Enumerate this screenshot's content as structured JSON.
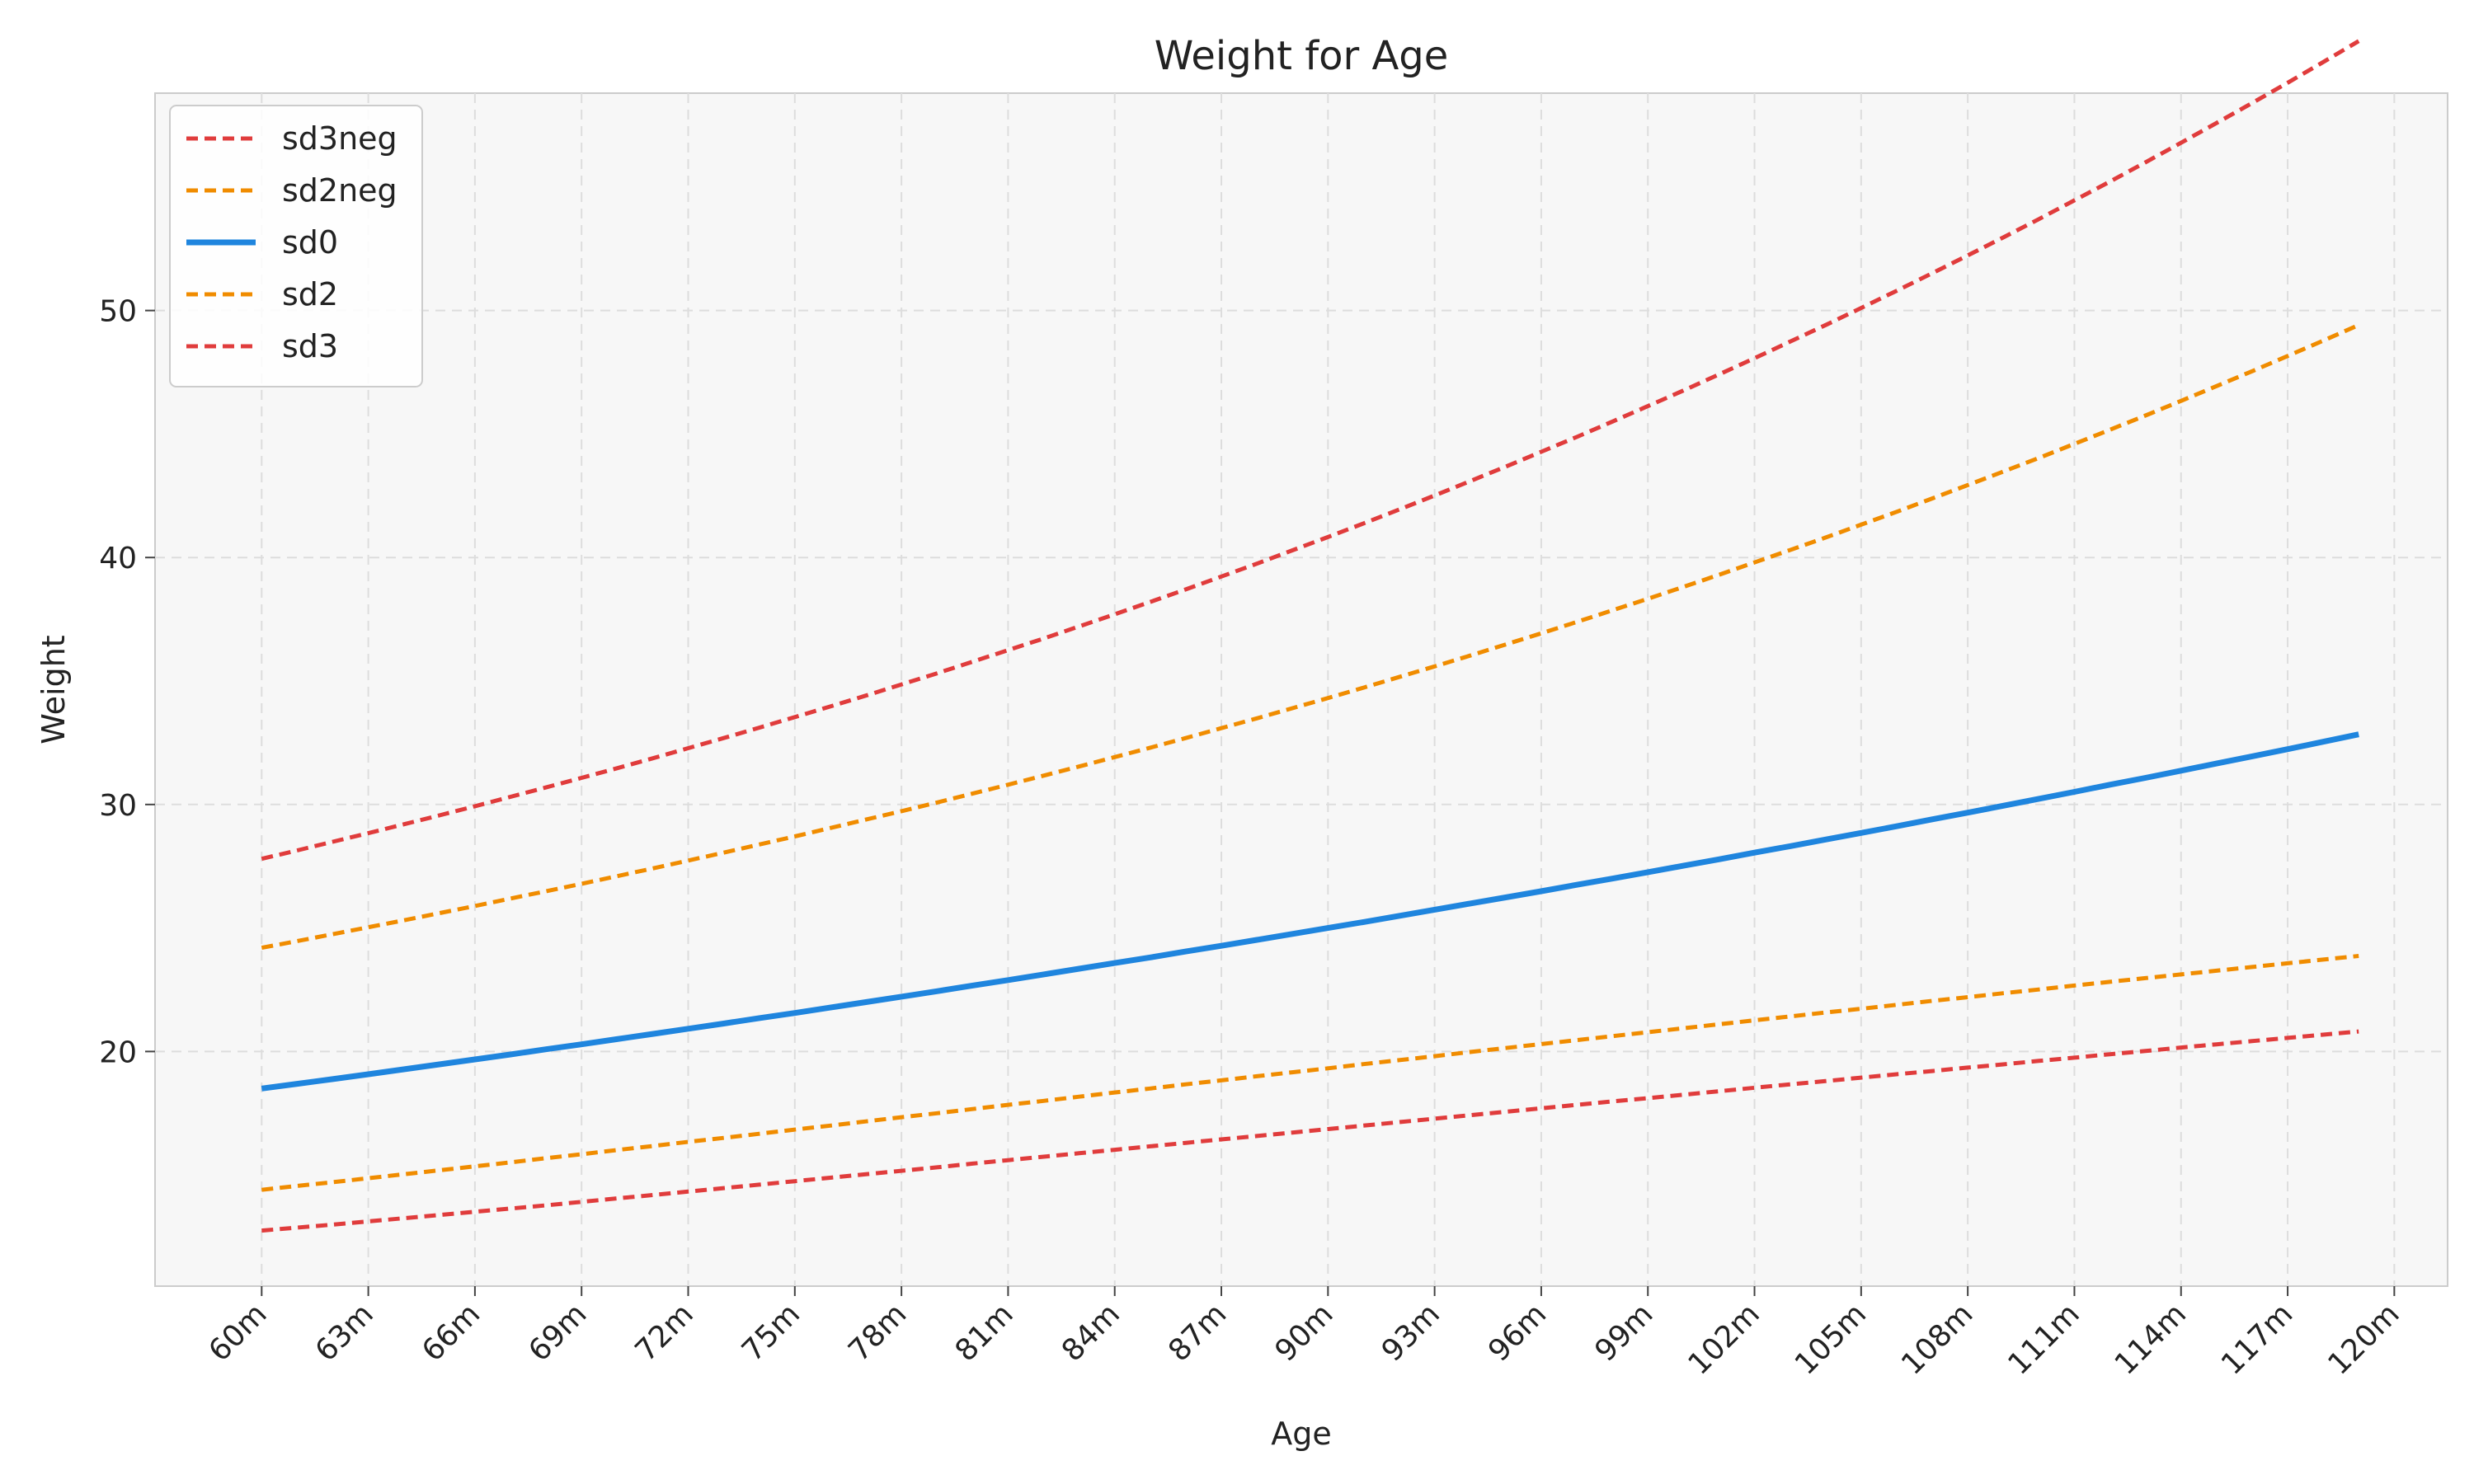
{
  "chart_data": {
    "type": "line",
    "title": "Weight for Age",
    "xlabel": "Age",
    "ylabel": "Weight",
    "categories": [
      "60m",
      "63m",
      "66m",
      "69m",
      "72m",
      "75m",
      "78m",
      "81m",
      "84m",
      "87m",
      "90m",
      "93m",
      "96m",
      "99m",
      "102m",
      "105m",
      "108m",
      "111m",
      "114m",
      "117m",
      "120m"
    ],
    "x": [
      60,
      61,
      62,
      63,
      64,
      65,
      66,
      67,
      68,
      69,
      70,
      71,
      72,
      73,
      74,
      75,
      76,
      77,
      78,
      79,
      80,
      81,
      82,
      83,
      84,
      85,
      86,
      87,
      88,
      89,
      90,
      91,
      92,
      93,
      94,
      95,
      96,
      97,
      98,
      99,
      100,
      101,
      102,
      103,
      104,
      105,
      106,
      107,
      108,
      109,
      110,
      111,
      112,
      113,
      114,
      115,
      116,
      117,
      118,
      119
    ],
    "xlim": [
      57,
      121.5
    ],
    "ylim": [
      10.5,
      58.8
    ],
    "yticks": [
      20,
      30,
      40,
      50
    ],
    "grid": true,
    "legend_position": "upper-left",
    "series": [
      {
        "name": "sd3neg",
        "color": "#e03c3c",
        "style": "dashed",
        "values": [
          12.75,
          12.87,
          12.99,
          13.12,
          13.25,
          13.38,
          13.51,
          13.64,
          13.77,
          13.91,
          14.05,
          14.19,
          14.33,
          14.47,
          14.61,
          14.75,
          14.89,
          15.03,
          15.17,
          15.31,
          15.46,
          15.6,
          15.74,
          15.88,
          16.02,
          16.16,
          16.3,
          16.44,
          16.58,
          16.72,
          16.86,
          17.0,
          17.14,
          17.28,
          17.42,
          17.56,
          17.7,
          17.84,
          17.98,
          18.11,
          18.25,
          18.39,
          18.53,
          18.67,
          18.8,
          18.94,
          19.08,
          19.21,
          19.35,
          19.48,
          19.62,
          19.75,
          19.89,
          20.02,
          20.16,
          20.29,
          20.42,
          20.55,
          20.68,
          20.81
        ]
      },
      {
        "name": "sd2neg",
        "color": "#f08c00",
        "style": "dashed",
        "values": [
          14.4,
          14.56,
          14.71,
          14.87,
          15.03,
          15.19,
          15.35,
          15.51,
          15.68,
          15.84,
          16.01,
          16.17,
          16.34,
          16.5,
          16.67,
          16.84,
          17.0,
          17.17,
          17.34,
          17.5,
          17.67,
          17.84,
          18.0,
          18.17,
          18.34,
          18.5,
          18.67,
          18.83,
          19.0,
          19.16,
          19.32,
          19.49,
          19.65,
          19.81,
          19.98,
          20.14,
          20.3,
          20.46,
          20.62,
          20.78,
          20.94,
          21.1,
          21.26,
          21.42,
          21.58,
          21.73,
          21.89,
          22.05,
          22.2,
          22.36,
          22.51,
          22.67,
          22.82,
          22.97,
          23.12,
          23.27,
          23.42,
          23.57,
          23.72,
          23.87
        ]
      },
      {
        "name": "sd0",
        "color": "#1f85de",
        "style": "solid",
        "values": [
          18.5,
          18.69,
          18.88,
          19.08,
          19.28,
          19.48,
          19.68,
          19.88,
          20.09,
          20.29,
          20.5,
          20.71,
          20.92,
          21.13,
          21.35,
          21.56,
          21.78,
          22.0,
          22.22,
          22.44,
          22.67,
          22.89,
          23.12,
          23.35,
          23.58,
          23.81,
          24.05,
          24.28,
          24.52,
          24.76,
          25.0,
          25.24,
          25.49,
          25.74,
          25.99,
          26.24,
          26.49,
          26.75,
          27.0,
          27.26,
          27.52,
          27.78,
          28.05,
          28.31,
          28.58,
          28.85,
          29.12,
          29.4,
          29.67,
          29.95,
          30.23,
          30.51,
          30.8,
          31.08,
          31.37,
          31.66,
          31.95,
          32.24,
          32.54,
          32.84
        ]
      },
      {
        "name": "sd2",
        "color": "#f08c00",
        "style": "dashed",
        "values": [
          24.2,
          24.47,
          24.75,
          25.03,
          25.31,
          25.6,
          25.89,
          26.19,
          26.49,
          26.79,
          27.1,
          27.41,
          27.73,
          28.05,
          28.38,
          28.71,
          29.05,
          29.39,
          29.73,
          30.08,
          30.44,
          30.8,
          31.17,
          31.54,
          31.92,
          32.3,
          32.69,
          33.09,
          33.49,
          33.9,
          34.31,
          34.73,
          35.16,
          35.59,
          36.03,
          36.48,
          36.93,
          37.39,
          37.86,
          38.33,
          38.81,
          39.3,
          39.8,
          40.3,
          40.81,
          41.33,
          41.85,
          42.39,
          42.93,
          43.48,
          44.03,
          44.6,
          45.17,
          45.75,
          46.34,
          46.94,
          47.54,
          48.16,
          48.78,
          49.41
        ]
      },
      {
        "name": "sd3",
        "color": "#e03c3c",
        "style": "dashed",
        "values": [
          27.8,
          28.14,
          28.49,
          28.84,
          29.2,
          29.56,
          29.93,
          30.31,
          30.69,
          31.08,
          31.47,
          31.87,
          32.28,
          32.69,
          33.11,
          33.54,
          33.97,
          34.41,
          34.86,
          35.31,
          35.78,
          36.25,
          36.72,
          37.21,
          37.7,
          38.2,
          38.71,
          39.23,
          39.75,
          40.29,
          40.83,
          41.38,
          41.94,
          42.51,
          43.09,
          43.68,
          44.28,
          44.88,
          45.5,
          46.13,
          46.76,
          47.41,
          48.07,
          48.74,
          49.41,
          50.1,
          50.8,
          51.51,
          52.23,
          52.96,
          53.7,
          54.46,
          55.22,
          56.0,
          56.79,
          57.59,
          58.4,
          59.22,
          60.06,
          60.91
        ]
      }
    ]
  }
}
